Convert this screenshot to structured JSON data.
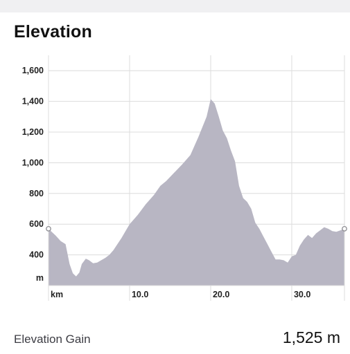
{
  "section": {
    "title": "Elevation"
  },
  "chart_data": {
    "type": "area",
    "title": "Elevation",
    "xlabel": "km",
    "ylabel": "m",
    "xlim": [
      0,
      36.5
    ],
    "ylim": [
      200,
      1700
    ],
    "x_tick_labels": [
      "km",
      "10.0",
      "20.0",
      "30.0"
    ],
    "x_tick_values": [
      0,
      10,
      20,
      30
    ],
    "y_tick_labels": [
      "m",
      "400",
      "600",
      "800",
      "1,000",
      "1,200",
      "1,400",
      "1,600"
    ],
    "y_tick_values": [
      250,
      400,
      600,
      800,
      1000,
      1200,
      1400,
      1600
    ],
    "grid": true,
    "fill_color": "#b8b6c3",
    "grid_color": "#dcdcdc",
    "series": [
      {
        "x": [
          0.0,
          0.3,
          0.9,
          1.5,
          2.1,
          2.6,
          3.0,
          3.4,
          3.8,
          4.1,
          4.6,
          5.0,
          5.5,
          6.0,
          6.5,
          7.0,
          7.5,
          8.0,
          8.5,
          9.0,
          9.5,
          10.0,
          11.0,
          12.0,
          13.0,
          13.8,
          14.5,
          15.5,
          16.5,
          17.5,
          18.5,
          19.5,
          20.0,
          20.5,
          21.0,
          21.5,
          22.0,
          22.5,
          23.0,
          23.5,
          24.0,
          24.5,
          25.0,
          25.5,
          26.0,
          26.5,
          27.0,
          27.5,
          28.0,
          28.5,
          29.0,
          29.5,
          30.0,
          30.5,
          31.0,
          31.5,
          32.0,
          32.5,
          33.0,
          33.5,
          34.0,
          34.5,
          35.0,
          35.5,
          36.0,
          36.5
        ],
        "y": [
          570,
          555,
          525,
          490,
          470,
          340,
          280,
          260,
          285,
          340,
          375,
          365,
          345,
          350,
          365,
          380,
          400,
          430,
          470,
          510,
          555,
          600,
          660,
          730,
          790,
          850,
          880,
          935,
          990,
          1050,
          1170,
          1300,
          1415,
          1385,
          1300,
          1210,
          1160,
          1080,
          1010,
          850,
          770,
          745,
          700,
          610,
          570,
          520,
          470,
          420,
          370,
          370,
          365,
          350,
          390,
          400,
          460,
          500,
          530,
          510,
          540,
          560,
          580,
          570,
          555,
          550,
          560,
          570
        ]
      }
    ]
  },
  "stats": {
    "label": "Elevation Gain",
    "value": "1,525 m"
  }
}
